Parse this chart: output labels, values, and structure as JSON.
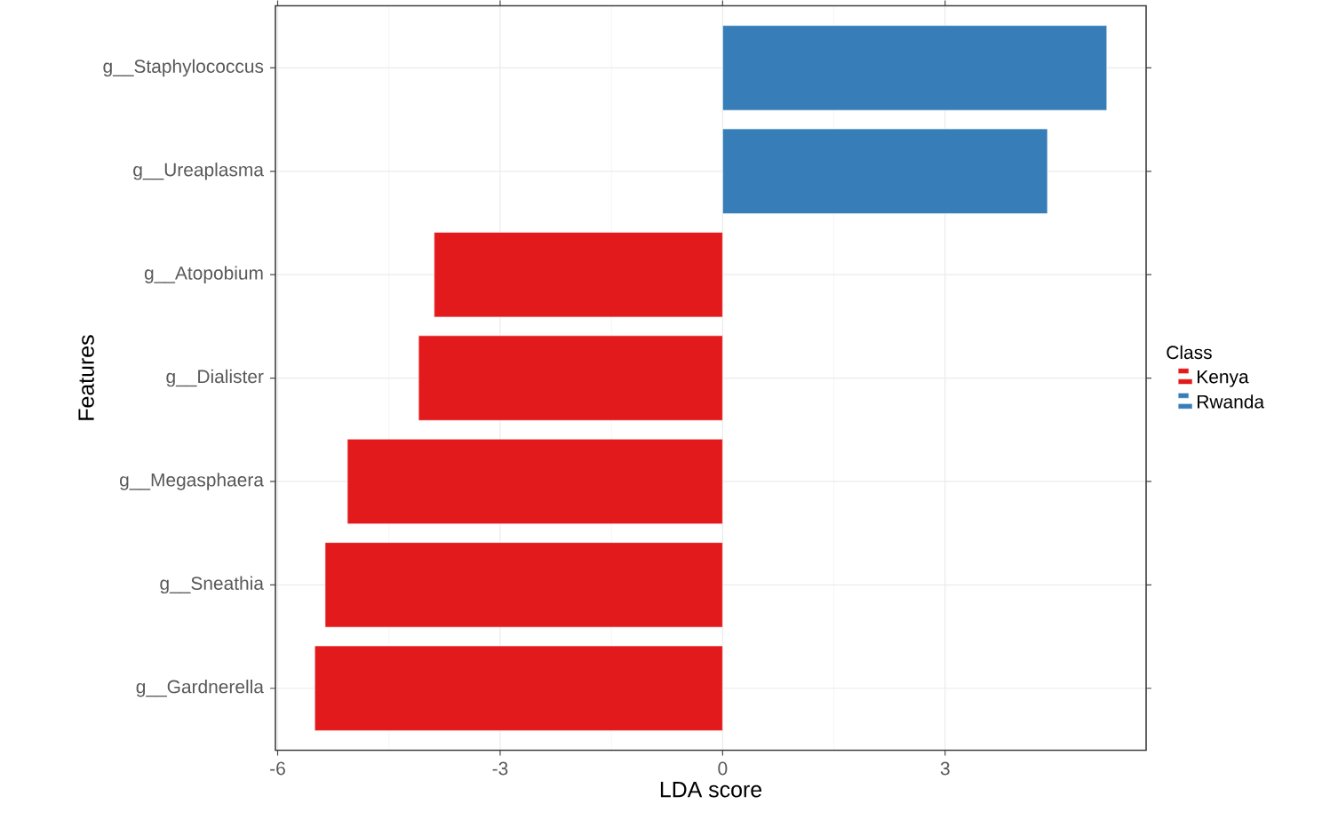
{
  "chart_data": {
    "type": "bar",
    "orientation": "horizontal",
    "xlabel": "LDA score",
    "ylabel": "Features",
    "legend_title": "Class",
    "categories": [
      "g__Staphylococcus",
      "g__Ureaplasma",
      "g__Atopobium",
      "g__Dialister",
      "g__Megasphaera",
      "g__Sneathia",
      "g__Gardnerella"
    ],
    "series": [
      {
        "name": "Kenya",
        "color": "#e31a1c",
        "values": [
          null,
          null,
          -3.89,
          -4.1,
          -5.06,
          -5.36,
          -5.5
        ]
      },
      {
        "name": "Rwanda",
        "color": "#377eb8",
        "values": [
          5.18,
          4.38,
          null,
          null,
          null,
          null,
          null
        ]
      }
    ],
    "xlim": [
      -6.03,
      5.71
    ],
    "xticks": [
      -6,
      -3,
      0,
      3
    ],
    "grid": true,
    "legend": "right"
  }
}
